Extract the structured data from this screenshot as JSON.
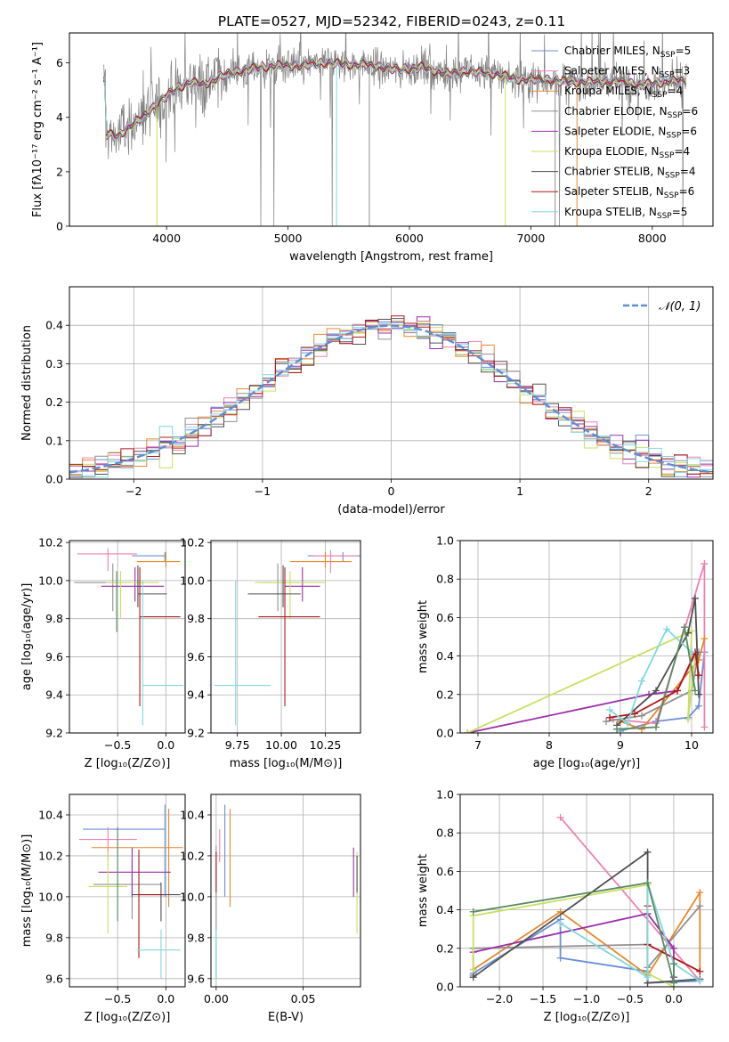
{
  "title": "PLATE=0527, MJD=52342, FIBERID=0243, z=0.11",
  "colors": {
    "Chabrier MILES": "#6b8fd6",
    "Salpeter MILES": "#f080b0",
    "Kroupa MILES": "#e8882a",
    "Chabrier ELODIE": "#909090",
    "Salpeter ELODIE": "#9a2fa8",
    "Kroupa ELODIE": "#c8e060",
    "Chabrier STELIB": "#505050",
    "Salpeter STELIB": "#b01818",
    "Kroupa STELIB": "#80d8e0",
    "gaussian": "#5b8fd6",
    "green": "#5a8a60"
  },
  "chart_data": [
    {
      "id": "spectrum",
      "type": "line",
      "xlabel": "wavelength [Angstrom, rest frame]",
      "ylabel": "Flux [fλ10⁻¹⁷ erg cm⁻² s⁻¹ A⁻¹]",
      "xlim": [
        3200,
        8500
      ],
      "ylim": [
        0,
        7.1
      ],
      "xticks": [
        4000,
        5000,
        6000,
        7000,
        8000
      ],
      "yticks": [
        0,
        2,
        4,
        6
      ],
      "legend_position": "top-right",
      "legend": [
        "Chabrier MILES, N_SSP=5",
        "Salpeter MILES, N_SSP=3",
        "Kroupa MILES, N_SSP=4",
        "Chabrier ELODIE, N_SSP=6",
        "Salpeter ELODIE, N_SSP=6",
        "Kroupa ELODIE, N_SSP=4",
        "Chabrier STELIB, N_SSP=4",
        "Salpeter STELIB, N_SSP=6",
        "Kroupa STELIB, N_SSP=5"
      ],
      "continuum": {
        "x": [
          3500,
          3600,
          3700,
          3800,
          3900,
          4000,
          4100,
          4200,
          4300,
          4500,
          4700,
          4900,
          5100,
          5300,
          5500,
          5700,
          5900,
          6100,
          6300,
          6500,
          6700,
          6900,
          7100,
          7300,
          7500,
          7700,
          7900,
          8100,
          8250
        ],
        "y": [
          3.4,
          3.3,
          3.7,
          4.0,
          4.4,
          4.8,
          5.1,
          5.3,
          5.2,
          5.6,
          5.8,
          5.9,
          5.9,
          6.0,
          5.95,
          5.9,
          5.75,
          5.85,
          5.6,
          5.7,
          5.6,
          5.4,
          5.4,
          5.3,
          5.3,
          5.3,
          5.2,
          5.3,
          5.35
        ]
      }
    },
    {
      "id": "histogram",
      "type": "bar",
      "xlabel": "(data-model)/error",
      "ylabel": "Normed distribution",
      "xlim": [
        -2.5,
        2.5
      ],
      "ylim": [
        0,
        0.5
      ],
      "xticks": [
        -2,
        -1,
        0,
        1,
        2
      ],
      "yticks": [
        0.0,
        0.1,
        0.2,
        0.3,
        0.4
      ],
      "grid": true,
      "legend": [
        "𝒩(0,1)"
      ],
      "legend_position": "top-right",
      "bin_width": 0.1
    },
    {
      "id": "age_vs_Z",
      "type": "scatter",
      "xlabel": "Z [log₁₀(Z/Z⊙)]",
      "ylabel": "age  [log₁₀(age/yr)]",
      "xlim": [
        -1.0,
        0.2
      ],
      "ylim": [
        9.2,
        10.21
      ],
      "xticks": [
        -0.5,
        0.0
      ],
      "yticks": [
        9.2,
        9.4,
        9.6,
        9.8,
        10.0,
        10.2
      ],
      "grid": true,
      "points": [
        {
          "series": "Chabrier MILES",
          "x": -0.01,
          "y": 10.13,
          "xerr": [
            0.34,
            0.0
          ],
          "yerr": [
            0.03,
            0.02
          ]
        },
        {
          "series": "Salpeter MILES",
          "x": -0.6,
          "y": 10.14,
          "xerr": [
            0.32,
            0.3
          ],
          "yerr": [
            0.09,
            0.03
          ]
        },
        {
          "series": "Kroupa MILES",
          "x": 0.0,
          "y": 10.1,
          "xerr": [
            0.3,
            0.15
          ],
          "yerr": [
            0.03,
            0.05
          ]
        },
        {
          "series": "Chabrier ELODIE",
          "x": -0.55,
          "y": 9.99,
          "xerr": [
            0.4,
            0.15
          ],
          "yerr": [
            0.15,
            0.1
          ]
        },
        {
          "series": "Salpeter ELODIE",
          "x": -0.32,
          "y": 9.97,
          "xerr": [
            0.35,
            0.3
          ],
          "yerr": [
            0.08,
            0.1
          ]
        },
        {
          "series": "Kroupa ELODIE",
          "x": -0.47,
          "y": 9.99,
          "xerr": [
            0.15,
            0.4
          ],
          "yerr": [
            0.19,
            0.06
          ]
        },
        {
          "series": "Chabrier STELIB",
          "x": -0.29,
          "y": 9.93,
          "xerr": [
            0.0,
            0.3
          ],
          "yerr": [
            0.07,
            0.15
          ]
        },
        {
          "series": "Salpeter STELIB",
          "x": -0.27,
          "y": 9.81,
          "xerr": [
            0.0,
            0.42
          ],
          "yerr": [
            0.47,
            0.26
          ]
        },
        {
          "series": "Kroupa STELIB",
          "x": -0.24,
          "y": 9.45,
          "xerr": [
            0.0,
            0.42
          ],
          "yerr": [
            0.21,
            0.55
          ]
        },
        {
          "series": "green",
          "x": -0.51,
          "y": 9.97,
          "xerr": [
            0.0,
            0.0
          ],
          "yerr": [
            0.24,
            0.08
          ]
        }
      ]
    },
    {
      "id": "age_vs_mass",
      "type": "scatter",
      "xlabel": "mass [log₁₀(M/M⊙)]",
      "ylabel": "",
      "xlim": [
        9.6,
        10.45
      ],
      "ylim": [
        9.2,
        10.21
      ],
      "xticks": [
        9.75,
        10.0,
        10.25
      ],
      "yticks": [
        9.2,
        9.4,
        9.6,
        9.8,
        10.0,
        10.2
      ],
      "grid": true,
      "points": [
        {
          "series": "Chabrier MILES",
          "x": 10.35,
          "y": 10.13,
          "xerr": [
            0.2,
            0.15
          ],
          "yerr": [
            0.03,
            0.02
          ]
        },
        {
          "series": "Salpeter MILES",
          "x": 10.28,
          "y": 10.13,
          "xerr": [
            0.1,
            0.15
          ],
          "yerr": [
            0.09,
            0.03
          ]
        },
        {
          "series": "Kroupa MILES",
          "x": 10.25,
          "y": 10.1,
          "xerr": [
            0.2,
            0.15
          ],
          "yerr": [
            0.03,
            0.05
          ]
        },
        {
          "series": "Chabrier ELODIE",
          "x": 9.98,
          "y": 9.99,
          "xerr": [
            0.1,
            0.15
          ],
          "yerr": [
            0.15,
            0.1
          ]
        },
        {
          "series": "Salpeter ELODIE",
          "x": 10.12,
          "y": 9.97,
          "xerr": [
            0.1,
            0.1
          ],
          "yerr": [
            0.08,
            0.1
          ]
        },
        {
          "series": "Kroupa ELODIE",
          "x": 10.05,
          "y": 9.99,
          "xerr": [
            0.2,
            0.2
          ],
          "yerr": [
            0.19,
            0.06
          ]
        },
        {
          "series": "Chabrier STELIB",
          "x": 10.01,
          "y": 9.93,
          "xerr": [
            0.2,
            0.1
          ],
          "yerr": [
            0.07,
            0.15
          ]
        },
        {
          "series": "Salpeter STELIB",
          "x": 10.02,
          "y": 9.81,
          "xerr": [
            0.15,
            0.2
          ],
          "yerr": [
            0.47,
            0.26
          ]
        },
        {
          "series": "Kroupa STELIB",
          "x": 9.74,
          "y": 9.45,
          "xerr": [
            0.12,
            0.2
          ],
          "yerr": [
            0.21,
            0.55
          ]
        }
      ]
    },
    {
      "id": "massweight_vs_age",
      "type": "line",
      "xlabel": "age  [log₁₀(age/yr)]",
      "ylabel": "mass weight",
      "xlim": [
        6.75,
        10.3
      ],
      "ylim": [
        0,
        1.0
      ],
      "xticks": [
        7,
        8,
        9,
        10
      ],
      "yticks": [
        0.0,
        0.2,
        0.4,
        0.6,
        0.8,
        1.0
      ],
      "grid": true,
      "series": [
        {
          "name": "Chabrier MILES",
          "x": [
            9.0,
            9.5,
            9.95,
            10.1,
            10.18
          ],
          "y": [
            0.01,
            0.06,
            0.08,
            0.14,
            0.42
          ]
        },
        {
          "name": "Salpeter MILES",
          "x": [
            8.9,
            9.5,
            10.18,
            10.18
          ],
          "y": [
            0.07,
            0.05,
            0.88,
            0.03
          ]
        },
        {
          "name": "Kroupa MILES",
          "x": [
            9.0,
            9.3,
            10.1,
            10.18
          ],
          "y": [
            0.06,
            0.02,
            0.38,
            0.49
          ]
        },
        {
          "name": "Chabrier ELODIE",
          "x": [
            8.8,
            9.3,
            10.0,
            10.1
          ],
          "y": [
            0.06,
            0.09,
            0.22,
            0.42
          ]
        },
        {
          "name": "Salpeter ELODIE",
          "x": [
            6.85,
            9.4,
            9.8,
            10.05
          ],
          "y": [
            0.0,
            0.2,
            0.22,
            0.41
          ]
        },
        {
          "name": "Kroupa ELODIE",
          "x": [
            6.85,
            10.0,
            9.95,
            10.05
          ],
          "y": [
            0.0,
            0.53,
            0.07,
            0.4
          ]
        },
        {
          "name": "Chabrier STELIB",
          "x": [
            8.95,
            9.5,
            9.95,
            10.05,
            10.1
          ],
          "y": [
            0.04,
            0.22,
            0.52,
            0.7,
            0.2
          ]
        },
        {
          "name": "Salpeter STELIB",
          "x": [
            8.85,
            9.2,
            9.8,
            10.05,
            10.1
          ],
          "y": [
            0.08,
            0.1,
            0.22,
            0.42,
            0.3
          ]
        },
        {
          "name": "Kroupa STELIB",
          "x": [
            8.85,
            9.1,
            9.3,
            9.65,
            10.0
          ],
          "y": [
            0.12,
            0.05,
            0.27,
            0.54,
            0.42
          ]
        },
        {
          "name": "green",
          "x": [
            8.95,
            9.5,
            9.9,
            10.05
          ],
          "y": [
            0.02,
            0.03,
            0.55,
            0.22
          ]
        }
      ]
    },
    {
      "id": "mass_vs_Z",
      "type": "scatter",
      "xlabel": "Z [log₁₀(Z/Z⊙)]",
      "ylabel": "mass [log₁₀(M/M⊙)]",
      "xlim": [
        -1.0,
        0.2
      ],
      "ylim": [
        9.56,
        10.5
      ],
      "xticks": [
        -0.5,
        0.0
      ],
      "yticks": [
        9.6,
        9.8,
        10.0,
        10.2,
        10.4
      ],
      "grid": true,
      "points": [
        {
          "series": "Chabrier MILES",
          "x": -0.01,
          "y": 10.33,
          "xerr": [
            0.85,
            0.0
          ],
          "yerr": [
            0.33,
            0.12
          ]
        },
        {
          "series": "Salpeter MILES",
          "x": -0.6,
          "y": 10.28,
          "xerr": [
            0.3,
            0.3
          ],
          "yerr": [
            0.1,
            0.06
          ]
        },
        {
          "series": "Kroupa MILES",
          "x": 0.03,
          "y": 10.24,
          "xerr": [
            0.8,
            0.15
          ],
          "yerr": [
            0.29,
            0.19
          ]
        },
        {
          "series": "Chabrier ELODIE",
          "x": -0.35,
          "y": 10.06,
          "xerr": [
            0.4,
            0.3
          ],
          "yerr": [
            0.17,
            0.12
          ]
        },
        {
          "series": "Salpeter ELODIE",
          "x": -0.35,
          "y": 10.12,
          "xerr": [
            0.35,
            0.4
          ],
          "yerr": [
            0.12,
            0.12
          ]
        },
        {
          "series": "Kroupa ELODIE",
          "x": -0.6,
          "y": 10.05,
          "xerr": [
            0.2,
            0.2
          ],
          "yerr": [
            0.23,
            0.17
          ]
        },
        {
          "series": "Chabrier STELIB",
          "x": -0.05,
          "y": 10.01,
          "xerr": [
            0.3,
            0.2
          ],
          "yerr": [
            0.13,
            0.06
          ]
        },
        {
          "series": "Salpeter STELIB",
          "x": -0.28,
          "y": 10.01,
          "xerr": [
            0.0,
            0.25
          ],
          "yerr": [
            0.31,
            0.22
          ]
        },
        {
          "series": "Kroupa STELIB",
          "x": -0.05,
          "y": 9.74,
          "xerr": [
            0.25,
            0.2
          ],
          "yerr": [
            0.14,
            0.1
          ]
        },
        {
          "series": "green",
          "x": -0.5,
          "y": 10.06,
          "xerr": [
            0.0,
            0.0
          ],
          "yerr": [
            0.18,
            0.28
          ]
        }
      ]
    },
    {
      "id": "mass_vs_ebv",
      "type": "scatter",
      "xlabel": "E(B-V)",
      "ylabel": "",
      "xlim": [
        -0.003,
        0.083
      ],
      "ylim": [
        9.56,
        10.5
      ],
      "xticks": [
        0.0,
        0.05
      ],
      "yticks": [
        9.6,
        9.8,
        10.0,
        10.2,
        10.4
      ],
      "grid": true,
      "points": [
        {
          "series": "Chabrier MILES",
          "x": 0.005,
          "y": 10.33,
          "yerr": [
            0.33,
            0.12
          ]
        },
        {
          "series": "Salpeter MILES",
          "x": 0.002,
          "y": 10.27,
          "yerr": [
            0.1,
            0.06
          ]
        },
        {
          "series": "Kroupa MILES",
          "x": 0.008,
          "y": 10.2,
          "yerr": [
            0.25,
            0.23
          ]
        },
        {
          "series": "Chabrier ELODIE",
          "x": 0.0,
          "y": 10.05,
          "yerr": [
            0.45,
            0.2
          ]
        },
        {
          "series": "Salpeter ELODIE",
          "x": 0.079,
          "y": 10.12,
          "yerr": [
            0.12,
            0.12
          ]
        },
        {
          "series": "Kroupa ELODIE",
          "x": 0.081,
          "y": 10.05,
          "yerr": [
            0.23,
            0.17
          ]
        },
        {
          "series": "Chabrier STELIB",
          "x": 0.081,
          "y": 10.12,
          "yerr": [
            0.1,
            0.08
          ]
        },
        {
          "series": "Salpeter STELIB",
          "x": 0.0,
          "y": 10.12,
          "yerr": [
            0.1,
            0.1
          ]
        },
        {
          "series": "Kroupa STELIB",
          "x": 0.0,
          "y": 9.74,
          "yerr": [
            0.14,
            0.1
          ]
        }
      ]
    },
    {
      "id": "massweight_vs_Z",
      "type": "line",
      "xlabel": "Z [log₁₀(Z/Z⊙)]",
      "ylabel": "mass weight",
      "xlim": [
        -2.45,
        0.45
      ],
      "ylim": [
        0,
        1.0
      ],
      "xticks": [
        -2.0,
        -1.5,
        -1.0,
        -0.5,
        0.0
      ],
      "yticks": [
        0.0,
        0.2,
        0.4,
        0.6,
        0.8,
        1.0
      ],
      "grid": true,
      "series": [
        {
          "name": "Chabrier MILES",
          "x": [
            -2.3,
            -1.3,
            -1.3,
            -0.3,
            -0.3,
            0.3
          ],
          "y": [
            0.07,
            0.35,
            0.15,
            0.08,
            0.02,
            0.03
          ]
        },
        {
          "name": "Salpeter MILES",
          "x": [
            -1.3,
            0.3
          ],
          "y": [
            0.88,
            0.03
          ]
        },
        {
          "name": "Kroupa MILES",
          "x": [
            -2.3,
            -1.3,
            -0.3,
            0.3,
            0.3
          ],
          "y": [
            0.09,
            0.39,
            0.06,
            0.49,
            0.08
          ]
        },
        {
          "name": "Chabrier ELODIE",
          "x": [
            -2.3,
            -2.3,
            -0.3,
            -0.3,
            0.3
          ],
          "y": [
            0.06,
            0.2,
            0.22,
            0.1,
            0.42
          ]
        },
        {
          "name": "Salpeter ELODIE",
          "x": [
            -2.3,
            -0.3,
            0.0,
            0.0
          ],
          "y": [
            0.18,
            0.38,
            0.2,
            0.05
          ]
        },
        {
          "name": "Kroupa ELODIE",
          "x": [
            -2.3,
            -2.3,
            -0.3,
            -0.3,
            0.0
          ],
          "y": [
            0.09,
            0.37,
            0.53,
            0.07,
            0.0
          ]
        },
        {
          "name": "Chabrier STELIB",
          "x": [
            -2.3,
            -0.3,
            -0.3,
            0.3
          ],
          "y": [
            0.05,
            0.7,
            0.02,
            0.04
          ]
        },
        {
          "name": "Salpeter STELIB",
          "x": [
            -0.3,
            -0.3,
            0.3
          ],
          "y": [
            0.42,
            0.22,
            0.08
          ]
        },
        {
          "name": "Kroupa STELIB",
          "x": [
            -1.3,
            -0.3,
            -0.3,
            0.0,
            0.3
          ],
          "y": [
            0.33,
            0.05,
            0.54,
            0.12,
            0.03
          ]
        },
        {
          "name": "green",
          "x": [
            -2.3,
            -0.3,
            0.0,
            0.0
          ],
          "y": [
            0.39,
            0.54,
            0.02,
            0.12
          ]
        }
      ]
    }
  ]
}
